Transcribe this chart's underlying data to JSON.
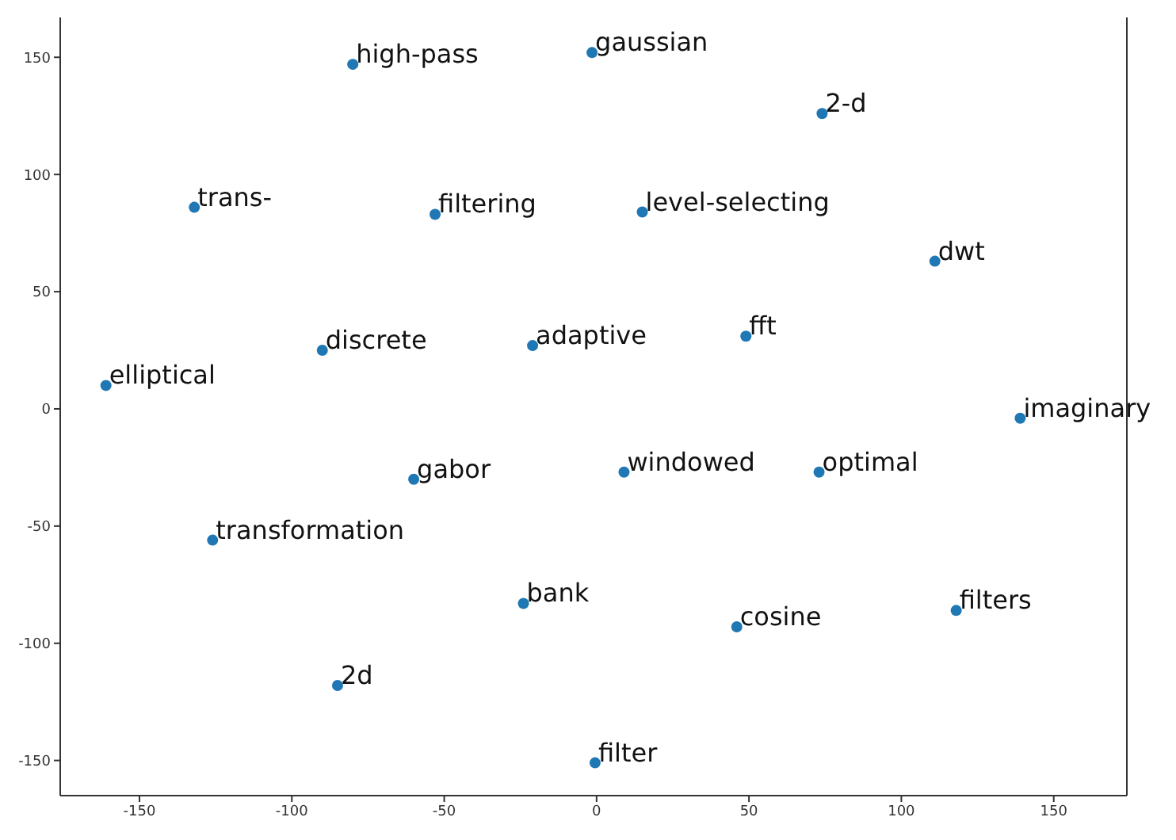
{
  "chart_data": {
    "type": "scatter",
    "color": "#1f77b4",
    "marker": "circle",
    "grid": false,
    "x": [
      -80,
      -1.5,
      74,
      -132,
      -53,
      15,
      111,
      49,
      -21,
      -90,
      -161,
      139,
      -60,
      9,
      73,
      -126,
      -24,
      46,
      118,
      -85,
      -0.5
    ],
    "values": [
      147,
      152,
      126,
      86,
      83,
      84,
      63,
      31,
      27,
      25,
      10,
      -4,
      -30,
      -27,
      -27,
      -56,
      -83,
      -93,
      -86,
      -118,
      -151
    ],
    "annotations": [
      {
        "text": "high-pass",
        "x": -80,
        "y": 147
      },
      {
        "text": "gaussian",
        "x": -1.5,
        "y": 152
      },
      {
        "text": "2-d",
        "x": 74,
        "y": 126
      },
      {
        "text": "trans-",
        "x": -132,
        "y": 86
      },
      {
        "text": "filtering",
        "x": -53,
        "y": 83
      },
      {
        "text": "level-selecting",
        "x": 15,
        "y": 84
      },
      {
        "text": "dwt",
        "x": 111,
        "y": 63
      },
      {
        "text": "fft",
        "x": 49,
        "y": 31
      },
      {
        "text": "adaptive",
        "x": -21,
        "y": 27
      },
      {
        "text": "discrete",
        "x": -90,
        "y": 25
      },
      {
        "text": "elliptical",
        "x": -161,
        "y": 10
      },
      {
        "text": "imaginary",
        "x": 139,
        "y": -4
      },
      {
        "text": "gabor",
        "x": -60,
        "y": -30
      },
      {
        "text": "windowed",
        "x": 9,
        "y": -27
      },
      {
        "text": "optimal",
        "x": 73,
        "y": -27
      },
      {
        "text": "transformation",
        "x": -126,
        "y": -56
      },
      {
        "text": "bank",
        "x": -24,
        "y": -83
      },
      {
        "text": "cosine",
        "x": 46,
        "y": -93
      },
      {
        "text": "filters",
        "x": 118,
        "y": -86
      },
      {
        "text": "2d",
        "x": -85,
        "y": -118
      },
      {
        "text": "filter",
        "x": -0.5,
        "y": -151
      }
    ],
    "xlim": [
      -176,
      174
    ],
    "ylim": [
      -165,
      167
    ],
    "xticks": [
      -150,
      -100,
      -50,
      0,
      50,
      100,
      150
    ],
    "yticks": [
      -150,
      -100,
      -50,
      0,
      50,
      100,
      150
    ]
  }
}
